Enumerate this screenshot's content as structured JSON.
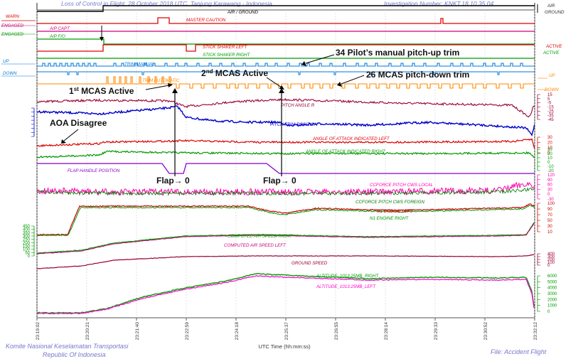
{
  "header": {
    "title": "Loss of Control in Flight, 28 October 2018 UTC, Tanjung Karawang - Indonesia",
    "investigation": "Investigation Number: KNKT.18.10.35.04"
  },
  "footer": {
    "org": "Komite Nasional Keselamatan Transportasi",
    "country": "Republic Of Indonesia",
    "file": "File: Accident Flight"
  },
  "chart_data": {
    "type": "line",
    "xlabel": "UTC Time (hh:mm:ss)",
    "x_ticks": [
      "23:19:02",
      "23:20:21",
      "23:21:40",
      "23:22:59",
      "23:24:18",
      "23:25:37",
      "23:26:55",
      "23:28:14",
      "23:29:33",
      "23:30:52",
      "23:32:12"
    ],
    "discrete_tracks": [
      {
        "name": "AIR / GROUND",
        "color": "#000000",
        "left_labels": [
          "AIR",
          "GROUND"
        ],
        "states": [
          "GROUND",
          "AIR"
        ]
      },
      {
        "name": "MASTER CAUTION",
        "color": "#e00000",
        "left_label": "WARN"
      },
      {
        "name": "A/P CAPT",
        "color": "#cc0077",
        "left_label": "ENGAGED"
      },
      {
        "name": "A/P F/O",
        "color": "#009900",
        "left_label": "ENGAGED"
      },
      {
        "name": "STICK SHAKER LEFT",
        "color": "#e00000",
        "right_label": "ACTIVE"
      },
      {
        "name": "STICK SHAKER RIGHT",
        "color": "#009900",
        "right_label": "ACTIVE"
      },
      {
        "name": "TRIM MANUAL",
        "color": "#0077dd",
        "left_labels": [
          "UP",
          "DOWN"
        ]
      },
      {
        "name": "TRIM AUTOMATIC",
        "color": "#ff8800",
        "right_labels": [
          "UP",
          "DOWN"
        ]
      }
    ],
    "continuous_params": [
      {
        "name": "PITCH ANGLE R",
        "color": "#990033",
        "ticks": [
          "15",
          "5",
          "-5",
          "-15",
          "-25",
          "-35",
          "-45"
        ]
      },
      {
        "name": "PITCH TRIM POSITION",
        "color": "#0000cc",
        "ticks": [
          "",
          "",
          "",
          "",
          "",
          "",
          "",
          ""
        ]
      },
      {
        "name": "ANGLE OF ATTACK INDICATED LEFT",
        "color": "#dd0000",
        "ticks": [
          "30",
          "20",
          "10",
          "0"
        ]
      },
      {
        "name": "ANGLE OF ATTACK INDICATED RIGHT",
        "color": "#009900",
        "ticks": [
          "30",
          "20",
          "10",
          "0",
          "-10",
          "-20"
        ]
      },
      {
        "name": "FLAP HANDLE POSITION",
        "color": "#8800cc"
      },
      {
        "name": "CCFORCE PITCH CWS LOCAL",
        "color": "#ff00aa",
        "ticks": [
          "120",
          "90",
          "60",
          "30",
          "0",
          "-30"
        ]
      },
      {
        "name": "CCFORCE PITCH CWS FOREIGN",
        "color": "#007700"
      },
      {
        "name": "N1 ENGINE LEFT",
        "color": "#cc0000",
        "ticks": [
          "100",
          "90",
          "70",
          "50",
          "30",
          "10"
        ]
      },
      {
        "name": "N1 ENGINE RIGHT",
        "color": "#009900"
      },
      {
        "name": "COMPUTED AIR SPEED RIGHT",
        "color": "#009900",
        "ticks": [
          "450",
          "400",
          "350",
          "300",
          "250",
          "200",
          "150",
          "100",
          "50",
          "0"
        ]
      },
      {
        "name": "COMPUTED AIR SPEED LEFT",
        "color": "#cc0077"
      },
      {
        "name": "GROUND SPEED",
        "color": "#990033",
        "ticks": [
          "400",
          "300",
          "200",
          "100",
          "0"
        ]
      },
      {
        "name": "ALTITUDE_1013.25MB_RIGHT",
        "color": "#009900",
        "ticks": [
          "6000",
          "5000",
          "4000",
          "3000",
          "2000",
          "1000",
          "0"
        ]
      },
      {
        "name": "ALTITUDE_1013.25MB_LEFT",
        "color": "#ff00cc"
      }
    ],
    "annotations": [
      {
        "text": "34 Pilot’s manual pitch-up trim"
      },
      {
        "text_main": "MCAS Active",
        "ordinal": "2",
        "ordinal_sup": "nd"
      },
      {
        "text": "26 MCAS pitch-down trim"
      },
      {
        "text_main": "MCAS Active",
        "ordinal": "1",
        "ordinal_sup": "st"
      },
      {
        "text": "AOA Disagree"
      },
      {
        "text": "Flap→ 0"
      },
      {
        "text": "Flap→ 0"
      }
    ],
    "grid": true
  }
}
